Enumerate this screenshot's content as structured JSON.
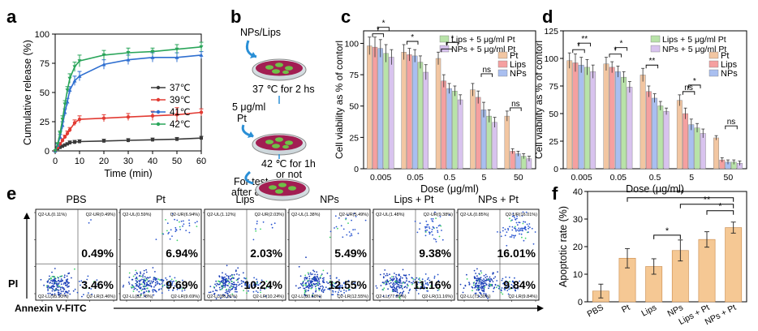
{
  "panel_labels": {
    "a": "a",
    "b": "b",
    "c": "c",
    "d": "d",
    "e": "e",
    "f": "f"
  },
  "chart_data": [
    {
      "id": "a",
      "type": "line",
      "xlabel": "Time (min)",
      "ylabel": "Cumulative release (%)",
      "xlim": [
        0,
        60
      ],
      "ylim": [
        0,
        100
      ],
      "xticks": [
        0,
        10,
        20,
        30,
        40,
        50,
        60
      ],
      "yticks": [
        0,
        25,
        50,
        75,
        100
      ],
      "legend": "right",
      "series": [
        {
          "name": "37℃",
          "color": "#3a3a3a",
          "x": [
            0,
            1,
            2,
            3,
            4,
            5,
            6,
            8,
            10,
            20,
            30,
            40,
            50,
            60
          ],
          "y": [
            0,
            2,
            3,
            4,
            5,
            6,
            7,
            7.5,
            8,
            8.5,
            9,
            9.5,
            10,
            11
          ],
          "err": [
            0,
            1,
            1,
            1,
            1,
            1,
            1.5,
            1.5,
            1.5,
            1.5,
            1.5,
            1.5,
            1.5,
            1.5
          ]
        },
        {
          "name": "39℃",
          "color": "#e23b33",
          "x": [
            0,
            1,
            2,
            3,
            4,
            5,
            6,
            8,
            10,
            20,
            30,
            40,
            50,
            60
          ],
          "y": [
            0,
            3,
            6,
            9,
            12,
            15,
            18,
            24,
            27,
            28,
            29,
            30,
            31,
            33
          ],
          "err": [
            0,
            1,
            1,
            1.5,
            1.5,
            2,
            2,
            2.5,
            3,
            3,
            3,
            4,
            6,
            3
          ]
        },
        {
          "name": "41℃",
          "color": "#2f6fd0",
          "x": [
            0,
            1,
            2,
            3,
            4,
            5,
            6,
            8,
            10,
            20,
            30,
            40,
            50,
            60
          ],
          "y": [
            0,
            5,
            12,
            22,
            33,
            42,
            52,
            60,
            64,
            74,
            78,
            80,
            80,
            82
          ],
          "err": [
            0,
            1,
            2,
            3,
            3,
            3,
            3,
            4,
            4,
            4,
            4,
            4,
            4,
            3
          ]
        },
        {
          "name": "42℃",
          "color": "#2aa55a",
          "x": [
            0,
            1,
            2,
            3,
            4,
            5,
            6,
            8,
            10,
            20,
            30,
            40,
            50,
            60
          ],
          "y": [
            0,
            6,
            15,
            27,
            40,
            52,
            62,
            72,
            77,
            82,
            84,
            85,
            87,
            89
          ],
          "err": [
            0,
            1,
            2,
            3,
            3,
            3,
            4,
            4,
            5,
            4,
            4,
            3,
            4,
            4
          ]
        }
      ]
    },
    {
      "id": "c",
      "type": "bar",
      "xlabel": "Dose (μg/ml)",
      "ylabel": "Cell viability as % of contorl",
      "categories": [
        "0.005",
        "0.05",
        "0.5",
        "5",
        "50"
      ],
      "ylim": [
        0,
        110
      ],
      "yticks": [
        0,
        25,
        50,
        75,
        100
      ],
      "legend": "top-right",
      "series": [
        {
          "name": "Pt",
          "color": "#f2c6a2",
          "values": [
            98,
            93,
            88,
            63,
            42
          ],
          "err": [
            7,
            6,
            5,
            5,
            4
          ]
        },
        {
          "name": "Lips",
          "color": "#f5a0a0",
          "values": [
            97,
            91,
            70,
            57,
            14
          ],
          "err": [
            8,
            5,
            5,
            5,
            2
          ]
        },
        {
          "name": "NPs",
          "color": "#a9bff0",
          "values": [
            96,
            90,
            64,
            47,
            12
          ],
          "err": [
            7,
            5,
            4,
            6,
            2
          ]
        },
        {
          "name": "Lips + 5 μg/ml Pt",
          "color": "#b8e3a8",
          "values": [
            92,
            85,
            62,
            42,
            10
          ],
          "err": [
            7,
            5,
            4,
            5,
            2
          ]
        },
        {
          "name": "NPs + 5 μg/ml Pt",
          "color": "#d8c3ee",
          "values": [
            89,
            77,
            55,
            37,
            8
          ],
          "err": [
            6,
            6,
            4,
            4,
            2
          ]
        }
      ],
      "annotations": [
        "*",
        "*",
        "*",
        "*",
        "*",
        "ns",
        "ns"
      ]
    },
    {
      "id": "d",
      "type": "bar",
      "xlabel": "Dose (μg/ml)",
      "ylabel": "Cell viability as % of contorl",
      "categories": [
        "0.005",
        "0.05",
        "0.5",
        "5",
        "50"
      ],
      "ylim": [
        0,
        125
      ],
      "yticks": [
        0,
        25,
        50,
        75,
        100,
        125
      ],
      "legend": "top-right",
      "series": [
        {
          "name": "Pt",
          "color": "#f2c6a2",
          "values": [
            98,
            95,
            85,
            62,
            28
          ],
          "err": [
            7,
            6,
            6,
            5,
            2
          ]
        },
        {
          "name": "Lips",
          "color": "#f5a0a0",
          "values": [
            96,
            92,
            70,
            50,
            8
          ],
          "err": [
            8,
            5,
            5,
            5,
            2
          ]
        },
        {
          "name": "NPs",
          "color": "#a9bff0",
          "values": [
            94,
            88,
            64,
            40,
            6
          ],
          "err": [
            7,
            5,
            4,
            5,
            2
          ]
        },
        {
          "name": "Lips + 5 μg/ml Pt",
          "color": "#b8e3a8",
          "values": [
            92,
            83,
            57,
            37,
            6
          ],
          "err": [
            7,
            5,
            4,
            4,
            2
          ]
        },
        {
          "name": "NPs + 5 μg/ml Pt",
          "color": "#d8c3ee",
          "values": [
            88,
            74,
            52,
            32,
            5
          ],
          "err": [
            6,
            5,
            3,
            4,
            2
          ]
        }
      ],
      "annotations": [
        "*",
        "**",
        "*",
        "*",
        "**",
        "*",
        "ns",
        "ns"
      ]
    },
    {
      "id": "f",
      "type": "bar",
      "ylabel": "Apoptotic rate (%)",
      "categories": [
        "PBS",
        "Pt",
        "Lips",
        "NPs",
        "Lips + Pt",
        "NPs + Pt"
      ],
      "ylim": [
        0,
        40
      ],
      "yticks": [
        0,
        10,
        20,
        30,
        40
      ],
      "values": [
        3.9,
        15.8,
        12.8,
        18.6,
        22.6,
        26.9
      ],
      "err": [
        2.5,
        3.5,
        2.8,
        3.8,
        2.8,
        2.0
      ],
      "color": "#f5c894",
      "significance": [
        {
          "from": 1,
          "to": 5,
          "label": "**"
        },
        {
          "from": 3,
          "to": 5,
          "label": "**"
        },
        {
          "from": 4,
          "to": 5,
          "label": "*"
        },
        {
          "from": 2,
          "to": 3,
          "label": "*"
        }
      ]
    }
  ],
  "scheme_b": {
    "step1": "NPs/Lips",
    "step2": "37 ℃ for 2 hs",
    "step3a": "5 μg/ml",
    "step3b": "Pt",
    "step4a": "42 ℃ for 1h",
    "step4b": "or not",
    "step5a": "For test",
    "step5b": "after 8 hs"
  },
  "flow_e": {
    "y_axis_label": "PI",
    "x_axis_label": "Annexin V-FITC",
    "panels": [
      {
        "title": "PBS",
        "ul": "Q2-UL(0.11%)",
        "ur": "Q2-UR(0.49%)",
        "ll": "Q2-LL(95.93%)",
        "lr": "Q2-LR(3.46%)",
        "ur_big": "0.49%",
        "lr_big": "3.46%",
        "late": 0.49,
        "early": 3.46
      },
      {
        "title": "Pt",
        "ul": "Q2-UL(0.59%)",
        "ur": "Q2-UR(6.94%)",
        "ll": "Q2-LL(82.78%)",
        "lr": "Q2-LR(9.69%)",
        "ur_big": "6.94%",
        "lr_big": "9.69%",
        "late": 6.94,
        "early": 9.69
      },
      {
        "title": "Lips",
        "ul": "Q2-UL(1.12%)",
        "ur": "Q2-UR(2.03%)",
        "ll": "Q2-LL(86.61%)",
        "lr": "Q2-LR(10.24%)",
        "ur_big": "2.03%",
        "lr_big": "10.24%",
        "late": 2.03,
        "early": 10.24
      },
      {
        "title": "NPs",
        "ul": "Q2-UL(1.38%)",
        "ur": "Q2-UR(5.49%)",
        "ll": "Q2-LL(80.68%)",
        "lr": "Q2-LR(12.55%)",
        "ur_big": "5.49%",
        "lr_big": "12.55%",
        "late": 5.49,
        "early": 12.55
      },
      {
        "title": "Lips + Pt",
        "ul": "Q2-UL(1.48%)",
        "ur": "Q2-UR(9.38%)",
        "ll": "Q2-LL(77.99%)",
        "lr": "Q2-LR(11.16%)",
        "ur_big": "9.38%",
        "lr_big": "11.16%",
        "late": 9.38,
        "early": 11.16
      },
      {
        "title": "NPs + Pt",
        "ul": "Q2-UL(0.85%)",
        "ur": "Q2-UR(16.01%)",
        "ll": "Q2-LL(73.30%)",
        "lr": "Q2-LR(9.84%)",
        "ur_big": "16.01%",
        "lr_big": "9.84%",
        "late": 16.01,
        "early": 9.84
      }
    ]
  }
}
